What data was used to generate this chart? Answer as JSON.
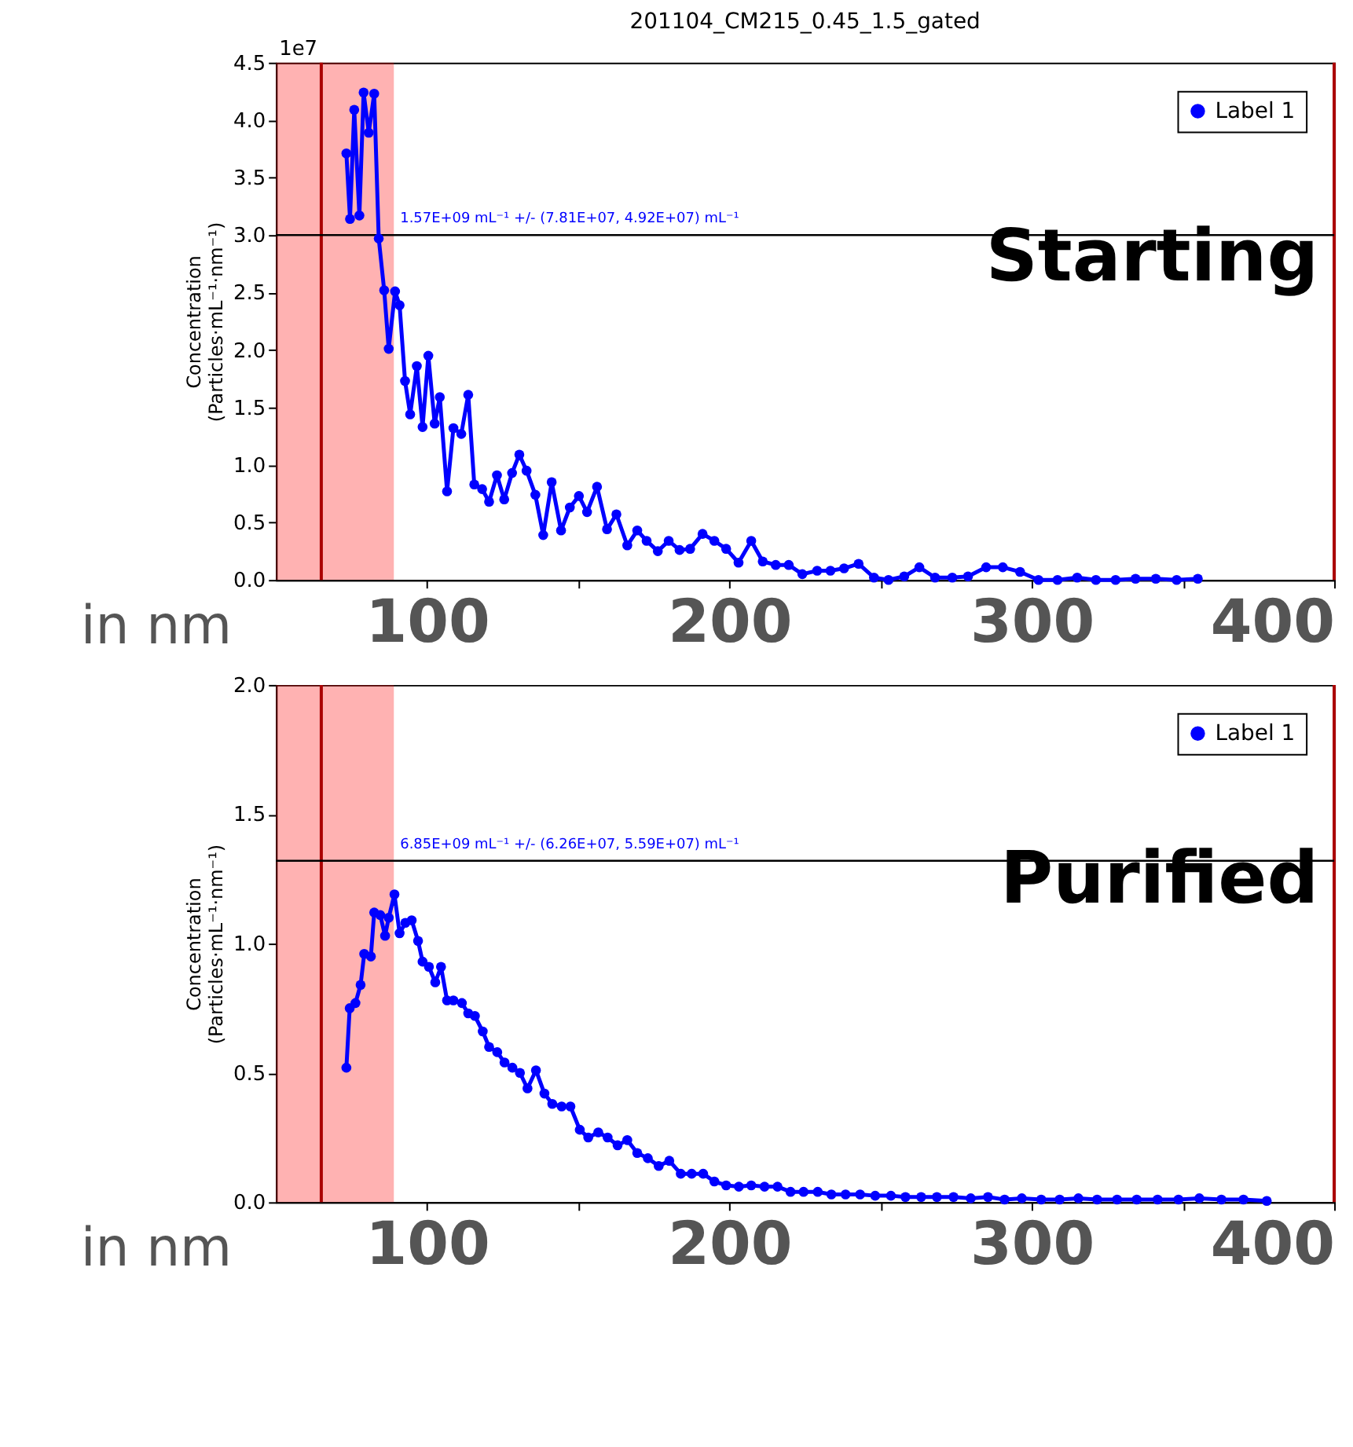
{
  "chart_data": [
    {
      "type": "line",
      "title": "201104_CM215_0.45_1.5_gated",
      "xlabel": "in nm",
      "ylabel": "Concentration\n(Particles·mL⁻¹·nm⁻¹)",
      "annotations": [
        "1e7",
        "Starting"
      ],
      "xlim": [
        50,
        400
      ],
      "xticks": [
        100,
        {
          "value": 150,
          "label": null
        },
        200,
        {
          "value": 250,
          "label": null
        },
        300,
        {
          "value": 350,
          "label": null
        },
        400
      ],
      "ylim": [
        0,
        4.5
      ],
      "yticks": [
        {
          "value": 0,
          "label": "0.0"
        },
        0.5,
        {
          "value": 1,
          "label": "1.0"
        },
        1.5,
        {
          "value": 2,
          "label": "2.0"
        },
        2.5,
        {
          "value": 3,
          "label": "3.0"
        },
        3.5,
        {
          "value": 4,
          "label": "4.0"
        },
        4.5
      ],
      "grid": false,
      "legend": "top right",
      "marker": "circle",
      "line_style": "solid",
      "bands": [
        {
          "axis": "x",
          "from": 50,
          "to": 89,
          "color": "#ff0000"
        }
      ],
      "ref_lines": [
        {
          "axis": "x",
          "value": 65,
          "color": "#aa0000"
        },
        {
          "axis": "x",
          "value": 400,
          "color": "#aa0000"
        },
        {
          "axis": "y",
          "value": 3.0,
          "color": "#000000",
          "label": "1.57E+09 mL⁻¹ +/- (7.81E+07, 4.92E+07) mL⁻¹"
        }
      ],
      "series": [
        {
          "name": "Label 1",
          "color": "#0000ff",
          "x": [
            73.3,
            74.5,
            75.9,
            77.6,
            79.0,
            80.7,
            82.5,
            84.0,
            85.8,
            87.3,
            89.4,
            90.9,
            92.7,
            94.4,
            96.6,
            98.5,
            100.4,
            102.5,
            104.2,
            106.6,
            108.7,
            111.3,
            113.6,
            115.6,
            118.2,
            120.5,
            123.1,
            125.5,
            128.1,
            130.5,
            132.9,
            135.8,
            138.4,
            141.2,
            144.3,
            147.2,
            150.2,
            152.9,
            156.2,
            159.5,
            162.6,
            166.2,
            169.5,
            172.6,
            176.3,
            179.9,
            183.5,
            187.0,
            191.1,
            195.0,
            198.9,
            203.0,
            207.2,
            211.0,
            215.3,
            219.6,
            224.1,
            229.0,
            233.4,
            237.9,
            242.7,
            247.8,
            252.6,
            257.8,
            262.8,
            268.0,
            273.7,
            278.9,
            284.9,
            290.4,
            296.1,
            302.2,
            308.5,
            315.0,
            321.2,
            327.7,
            334.3,
            341.0,
            347.9,
            354.9
          ],
          "values": [
            3.71,
            3.14,
            4.09,
            3.17,
            4.24,
            3.89,
            4.23,
            2.97,
            2.52,
            2.01,
            2.51,
            2.39,
            1.73,
            1.44,
            1.86,
            1.33,
            1.95,
            1.36,
            1.59,
            0.77,
            1.32,
            1.27,
            1.61,
            0.83,
            0.79,
            0.68,
            0.91,
            0.7,
            0.93,
            1.09,
            0.95,
            0.74,
            0.39,
            0.85,
            0.43,
            0.63,
            0.73,
            0.59,
            0.81,
            0.44,
            0.57,
            0.3,
            0.43,
            0.34,
            0.25,
            0.34,
            0.26,
            0.27,
            0.4,
            0.34,
            0.27,
            0.15,
            0.34,
            0.16,
            0.13,
            0.13,
            0.05,
            0.08,
            0.08,
            0.1,
            0.14,
            0.02,
            0.0,
            0.03,
            0.11,
            0.02,
            0.02,
            0.03,
            0.11,
            0.11,
            0.07,
            0.0,
            0.0,
            0.02,
            0.0,
            0.0,
            0.01,
            0.01,
            0.0,
            0.01
          ]
        }
      ]
    },
    {
      "type": "line",
      "xlabel": "in nm",
      "ylabel": "Concentration\n(Particles·mL⁻¹·nm⁻¹)",
      "annotations": [
        "Purified"
      ],
      "xlim": [
        50,
        400
      ],
      "xticks": [
        100,
        {
          "value": 150,
          "label": null
        },
        200,
        {
          "value": 250,
          "label": null
        },
        300,
        {
          "value": 350,
          "label": null
        },
        400
      ],
      "ylim": [
        0,
        2.0
      ],
      "yticks": [
        {
          "value": 0,
          "label": "0.0"
        },
        0.5,
        {
          "value": 1,
          "label": "1.0"
        },
        1.5,
        {
          "value": 2,
          "label": "2.0"
        }
      ],
      "grid": false,
      "legend": "top right",
      "marker": "circle",
      "line_style": "solid",
      "bands": [
        {
          "axis": "x",
          "from": 50,
          "to": 89,
          "color": "#ff0000"
        }
      ],
      "ref_lines": [
        {
          "axis": "x",
          "value": 65,
          "color": "#aa0000"
        },
        {
          "axis": "x",
          "value": 400,
          "color": "#aa0000"
        },
        {
          "axis": "y",
          "value": 1.32,
          "color": "#000000",
          "label": "6.85E+09 mL⁻¹ +/- (6.26E+07, 5.59E+07) mL⁻¹"
        }
      ],
      "series": [
        {
          "name": "Label 1",
          "color": "#0000ff",
          "x": [
            73.3,
            74.4,
            76.3,
            78.0,
            79.2,
            81.4,
            82.5,
            84.5,
            86.1,
            87.3,
            89.2,
            90.9,
            92.8,
            94.9,
            97.0,
            98.5,
            100.6,
            102.7,
            104.6,
            106.6,
            108.7,
            111.5,
            113.6,
            115.8,
            118.4,
            120.5,
            123.2,
            125.6,
            128.2,
            130.7,
            133.2,
            136.0,
            138.8,
            141.4,
            144.5,
            147.4,
            150.5,
            153.3,
            156.6,
            159.7,
            163.0,
            166.2,
            169.5,
            173.0,
            176.6,
            180.1,
            183.9,
            187.5,
            191.3,
            195.0,
            198.9,
            203.1,
            207.2,
            211.6,
            215.9,
            220.2,
            224.5,
            229.2,
            233.7,
            238.4,
            243.2,
            248.2,
            253.4,
            258.2,
            263.4,
            268.6,
            274.1,
            279.8,
            285.5,
            291.0,
            296.7,
            303.1,
            309.2,
            315.4,
            321.6,
            328.2,
            334.7,
            341.6,
            348.5,
            355.4,
            362.7,
            370.0,
            377.7
          ],
          "values": [
            0.52,
            0.75,
            0.77,
            0.84,
            0.96,
            0.95,
            1.12,
            1.11,
            1.03,
            1.1,
            1.19,
            1.04,
            1.08,
            1.09,
            1.01,
            0.93,
            0.91,
            0.85,
            0.91,
            0.78,
            0.78,
            0.77,
            0.73,
            0.72,
            0.66,
            0.6,
            0.58,
            0.54,
            0.52,
            0.5,
            0.44,
            0.51,
            0.42,
            0.38,
            0.37,
            0.37,
            0.28,
            0.25,
            0.27,
            0.25,
            0.22,
            0.24,
            0.19,
            0.17,
            0.14,
            0.16,
            0.11,
            0.11,
            0.11,
            0.08,
            0.065,
            0.06,
            0.065,
            0.06,
            0.06,
            0.04,
            0.04,
            0.04,
            0.03,
            0.03,
            0.03,
            0.025,
            0.025,
            0.02,
            0.02,
            0.02,
            0.02,
            0.015,
            0.02,
            0.01,
            0.015,
            0.01,
            0.01,
            0.015,
            0.01,
            0.01,
            0.01,
            0.01,
            0.01,
            0.015,
            0.01,
            0.01,
            0.005
          ]
        }
      ]
    }
  ]
}
